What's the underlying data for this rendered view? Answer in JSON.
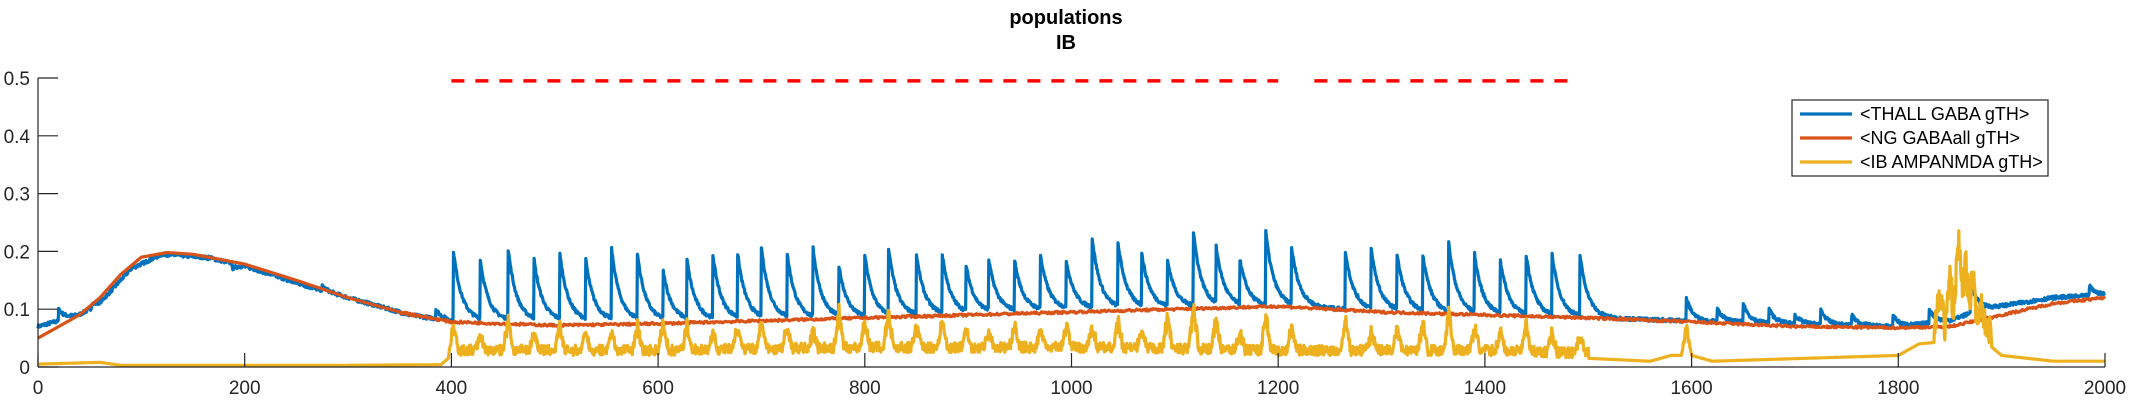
{
  "chart_data": {
    "type": "line",
    "title": "populations",
    "subtitle": "IB",
    "xlabel": "",
    "ylabel": "",
    "xlim": [
      0,
      2000
    ],
    "ylim": [
      0,
      0.5
    ],
    "x_ticks": [
      0,
      200,
      400,
      600,
      800,
      1000,
      1200,
      1400,
      1600,
      1800,
      2000
    ],
    "y_ticks": [
      0,
      0.1,
      0.2,
      0.3,
      0.4,
      0.5
    ],
    "y_tick_labels": [
      "0",
      "0.1",
      "0.2",
      "0.3",
      "0.4",
      "0.5"
    ],
    "grid": false,
    "legend_position": "top-right",
    "series": [
      {
        "name": "<THALL GABA gTH>",
        "color": "#0072BD",
        "baseline": [
          [
            0,
            0.07
          ],
          [
            40,
            0.09
          ],
          [
            60,
            0.11
          ],
          [
            90,
            0.17
          ],
          [
            120,
            0.195
          ],
          [
            160,
            0.19
          ],
          [
            200,
            0.175
          ],
          [
            260,
            0.14
          ],
          [
            320,
            0.11
          ],
          [
            360,
            0.09
          ],
          [
            400,
            0.08
          ],
          [
            600,
            0.08
          ],
          [
            800,
            0.085
          ],
          [
            1000,
            0.1
          ],
          [
            1200,
            0.105
          ],
          [
            1400,
            0.09
          ],
          [
            1500,
            0.085
          ],
          [
            1600,
            0.08
          ],
          [
            1700,
            0.075
          ],
          [
            1800,
            0.07
          ],
          [
            1850,
            0.08
          ],
          [
            1880,
            0.1
          ],
          [
            1950,
            0.12
          ],
          [
            2000,
            0.125
          ]
        ],
        "spikes": [
          [
            402,
            0.2
          ],
          [
            428,
            0.18
          ],
          [
            455,
            0.2
          ],
          [
            480,
            0.18
          ],
          [
            505,
            0.19
          ],
          [
            530,
            0.18
          ],
          [
            555,
            0.2
          ],
          [
            580,
            0.19
          ],
          [
            605,
            0.16
          ],
          [
            628,
            0.18
          ],
          [
            653,
            0.19
          ],
          [
            677,
            0.19
          ],
          [
            700,
            0.2
          ],
          [
            725,
            0.19
          ],
          [
            750,
            0.2
          ],
          [
            775,
            0.17
          ],
          [
            800,
            0.19
          ],
          [
            823,
            0.2
          ],
          [
            850,
            0.19
          ],
          [
            875,
            0.19
          ],
          [
            898,
            0.17
          ],
          [
            920,
            0.18
          ],
          [
            945,
            0.18
          ],
          [
            970,
            0.19
          ],
          [
            995,
            0.18
          ],
          [
            1020,
            0.22
          ],
          [
            1045,
            0.21
          ],
          [
            1068,
            0.19
          ],
          [
            1093,
            0.18
          ],
          [
            1118,
            0.23
          ],
          [
            1140,
            0.2
          ],
          [
            1163,
            0.18
          ],
          [
            1188,
            0.23
          ],
          [
            1213,
            0.2
          ],
          [
            1265,
            0.2
          ],
          [
            1290,
            0.2
          ],
          [
            1315,
            0.19
          ],
          [
            1340,
            0.19
          ],
          [
            1365,
            0.21
          ],
          [
            1390,
            0.19
          ],
          [
            1415,
            0.18
          ],
          [
            1440,
            0.19
          ],
          [
            1465,
            0.19
          ],
          [
            1492,
            0.19
          ]
        ],
        "small_bumps": [
          [
            20,
            0.1
          ],
          [
            52,
            0.11
          ],
          [
            165,
            0.19
          ],
          [
            188,
            0.17
          ],
          [
            240,
            0.15
          ],
          [
            275,
            0.14
          ],
          [
            320,
            0.11
          ],
          [
            385,
            0.1
          ],
          [
            1595,
            0.12
          ],
          [
            1625,
            0.1
          ],
          [
            1650,
            0.11
          ],
          [
            1675,
            0.1
          ],
          [
            1700,
            0.09
          ],
          [
            1725,
            0.1
          ],
          [
            1755,
            0.09
          ],
          [
            1795,
            0.09
          ],
          [
            1830,
            0.1
          ],
          [
            1870,
            0.15
          ],
          [
            1985,
            0.14
          ]
        ]
      },
      {
        "name": "<NG GABAall gTH>",
        "color": "#D95319",
        "points": [
          [
            0,
            0.05
          ],
          [
            20,
            0.07
          ],
          [
            40,
            0.09
          ],
          [
            60,
            0.12
          ],
          [
            80,
            0.16
          ],
          [
            100,
            0.19
          ],
          [
            125,
            0.198
          ],
          [
            150,
            0.195
          ],
          [
            200,
            0.178
          ],
          [
            250,
            0.15
          ],
          [
            300,
            0.12
          ],
          [
            350,
            0.095
          ],
          [
            400,
            0.078
          ],
          [
            450,
            0.075
          ],
          [
            500,
            0.072
          ],
          [
            600,
            0.075
          ],
          [
            700,
            0.08
          ],
          [
            800,
            0.085
          ],
          [
            900,
            0.09
          ],
          [
            1000,
            0.095
          ],
          [
            1100,
            0.1
          ],
          [
            1200,
            0.105
          ],
          [
            1300,
            0.095
          ],
          [
            1400,
            0.09
          ],
          [
            1500,
            0.085
          ],
          [
            1600,
            0.078
          ],
          [
            1700,
            0.07
          ],
          [
            1800,
            0.068
          ],
          [
            1850,
            0.07
          ],
          [
            1900,
            0.09
          ],
          [
            1950,
            0.11
          ],
          [
            2000,
            0.12
          ]
        ]
      },
      {
        "name": "<IB AMPANMDA gTH>",
        "color": "#EDB120",
        "baseline": [
          [
            0,
            0.005
          ],
          [
            60,
            0.008
          ],
          [
            80,
            0.003
          ],
          [
            200,
            0.003
          ],
          [
            300,
            0.003
          ],
          [
            390,
            0.004
          ],
          [
            400,
            0.02
          ],
          [
            600,
            0.02
          ],
          [
            800,
            0.025
          ],
          [
            1000,
            0.025
          ],
          [
            1200,
            0.02
          ],
          [
            1400,
            0.02
          ],
          [
            1500,
            0.015
          ],
          [
            1560,
            0.01
          ],
          [
            1580,
            0.02
          ],
          [
            1600,
            0.02
          ],
          [
            1620,
            0.01
          ],
          [
            1800,
            0.02
          ],
          [
            1820,
            0.04
          ],
          [
            1880,
            0.05
          ],
          [
            1900,
            0.02
          ],
          [
            1950,
            0.01
          ],
          [
            2000,
            0.01
          ]
        ],
        "spikes": [
          [
            402,
            0.08
          ],
          [
            428,
            0.05
          ],
          [
            455,
            0.09
          ],
          [
            480,
            0.06
          ],
          [
            505,
            0.07
          ],
          [
            530,
            0.06
          ],
          [
            555,
            0.06
          ],
          [
            580,
            0.07
          ],
          [
            605,
            0.08
          ],
          [
            628,
            0.07
          ],
          [
            653,
            0.06
          ],
          [
            677,
            0.07
          ],
          [
            700,
            0.08
          ],
          [
            725,
            0.07
          ],
          [
            750,
            0.06
          ],
          [
            775,
            0.1
          ],
          [
            800,
            0.08
          ],
          [
            823,
            0.1
          ],
          [
            850,
            0.07
          ],
          [
            875,
            0.08
          ],
          [
            898,
            0.06
          ],
          [
            920,
            0.06
          ],
          [
            945,
            0.07
          ],
          [
            970,
            0.06
          ],
          [
            995,
            0.08
          ],
          [
            1020,
            0.07
          ],
          [
            1045,
            0.08
          ],
          [
            1068,
            0.06
          ],
          [
            1093,
            0.09
          ],
          [
            1118,
            0.11
          ],
          [
            1140,
            0.09
          ],
          [
            1163,
            0.06
          ],
          [
            1188,
            0.09
          ],
          [
            1213,
            0.07
          ],
          [
            1265,
            0.09
          ],
          [
            1290,
            0.06
          ],
          [
            1315,
            0.07
          ],
          [
            1340,
            0.08
          ],
          [
            1365,
            0.1
          ],
          [
            1390,
            0.07
          ],
          [
            1415,
            0.06
          ],
          [
            1440,
            0.07
          ],
          [
            1465,
            0.06
          ],
          [
            1492,
            0.05
          ],
          [
            1595,
            0.08
          ],
          [
            1840,
            0.11
          ],
          [
            1850,
            0.16
          ],
          [
            1858,
            0.23
          ],
          [
            1865,
            0.18
          ],
          [
            1872,
            0.14
          ],
          [
            1880,
            0.09
          ]
        ]
      }
    ],
    "stimulus_marker": {
      "type": "dashed-line",
      "color": "#FF0000",
      "y": 0.495,
      "segments": [
        [
          400,
          1200
        ],
        [
          1235,
          1490
        ]
      ]
    }
  }
}
